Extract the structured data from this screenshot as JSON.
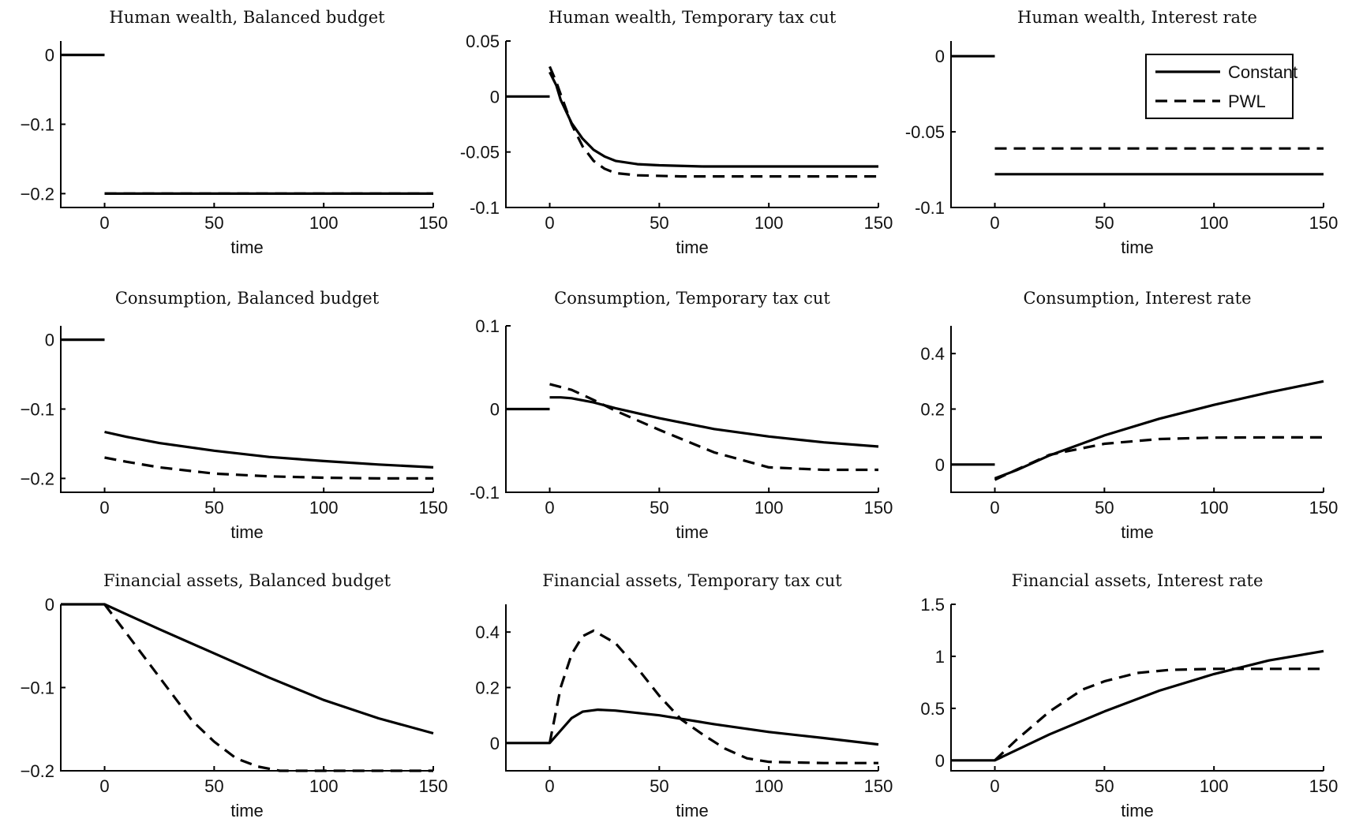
{
  "legend": {
    "placement": "top-right of the Human wealth, Interest rate panel",
    "entries": [
      {
        "label": "Constant",
        "style": "solid"
      },
      {
        "label": "PWL",
        "style": "dashed"
      }
    ]
  },
  "colors": {
    "line": "#000000",
    "background": "#ffffff"
  },
  "chart_data": [
    {
      "type": "line",
      "title": "Human wealth, Balanced budget",
      "xlabel": "time",
      "xlim": [
        -20,
        150
      ],
      "ylim": [
        -0.22,
        0.02
      ],
      "xticks": [
        0,
        50,
        100,
        150
      ],
      "yticks": [
        0,
        -0.1,
        -0.2
      ],
      "ytick_labels": [
        "0",
        "−0.1",
        "−0.2"
      ],
      "series": [
        {
          "name": "Constant",
          "style": "solid",
          "segments": [
            [
              [
                -20,
                0
              ],
              [
                0,
                0
              ]
            ],
            [
              [
                0,
                -0.2
              ],
              [
                150,
                -0.2
              ]
            ]
          ]
        },
        {
          "name": "PWL",
          "style": "dashed",
          "segments": [
            [
              [
                0,
                -0.2
              ],
              [
                150,
                -0.2
              ]
            ]
          ]
        }
      ]
    },
    {
      "type": "line",
      "title": "Human wealth, Temporary tax cut",
      "xlabel": "time",
      "xlim": [
        -20,
        150
      ],
      "ylim": [
        -0.1,
        0.05
      ],
      "xticks": [
        0,
        50,
        100,
        150
      ],
      "yticks": [
        0.05,
        0,
        -0.05,
        -0.1
      ],
      "ytick_labels": [
        "0.05",
        "0",
        "-0.05",
        "-0.1"
      ],
      "series": [
        {
          "name": "Constant",
          "style": "solid",
          "segments": [
            [
              [
                -20,
                0
              ],
              [
                0,
                0
              ]
            ],
            [
              [
                0,
                0.022
              ],
              [
                3,
                0.01
              ],
              [
                5,
                -0.003
              ],
              [
                10,
                -0.024
              ],
              [
                15,
                -0.038
              ],
              [
                20,
                -0.048
              ],
              [
                25,
                -0.054
              ],
              [
                30,
                -0.058
              ],
              [
                40,
                -0.061
              ],
              [
                50,
                -0.062
              ],
              [
                70,
                -0.063
              ],
              [
                100,
                -0.063
              ],
              [
                150,
                -0.063
              ]
            ]
          ]
        },
        {
          "name": "PWL",
          "style": "dashed",
          "segments": [
            [
              [
                0,
                0.027
              ],
              [
                3,
                0.013
              ],
              [
                5,
                0.002
              ],
              [
                10,
                -0.025
              ],
              [
                15,
                -0.045
              ],
              [
                20,
                -0.058
              ],
              [
                25,
                -0.065
              ],
              [
                30,
                -0.069
              ],
              [
                40,
                -0.071
              ],
              [
                60,
                -0.072
              ],
              [
                100,
                -0.072
              ],
              [
                150,
                -0.072
              ]
            ]
          ]
        }
      ]
    },
    {
      "type": "line",
      "title": "Human wealth, Interest rate",
      "xlabel": "time",
      "xlim": [
        -20,
        150
      ],
      "ylim": [
        -0.1,
        0.01
      ],
      "xticks": [
        0,
        50,
        100,
        150
      ],
      "yticks": [
        0,
        -0.05,
        -0.1
      ],
      "ytick_labels": [
        "0",
        "-0.05",
        "-0.1"
      ],
      "series": [
        {
          "name": "Constant",
          "style": "solid",
          "segments": [
            [
              [
                -20,
                0
              ],
              [
                0,
                0
              ]
            ],
            [
              [
                0,
                -0.078
              ],
              [
                150,
                -0.078
              ]
            ]
          ]
        },
        {
          "name": "PWL",
          "style": "dashed",
          "segments": [
            [
              [
                0,
                -0.061
              ],
              [
                150,
                -0.061
              ]
            ]
          ]
        }
      ]
    },
    {
      "type": "line",
      "title": "Consumption, Balanced budget",
      "xlabel": "time",
      "xlim": [
        -20,
        150
      ],
      "ylim": [
        -0.22,
        0.02
      ],
      "xticks": [
        0,
        50,
        100,
        150
      ],
      "yticks": [
        0,
        -0.1,
        -0.2
      ],
      "ytick_labels": [
        "0",
        "−0.1",
        "−0.2"
      ],
      "series": [
        {
          "name": "Constant",
          "style": "solid",
          "segments": [
            [
              [
                -20,
                0
              ],
              [
                0,
                0
              ]
            ],
            [
              [
                0,
                -0.133
              ],
              [
                10,
                -0.14
              ],
              [
                25,
                -0.149
              ],
              [
                50,
                -0.16
              ],
              [
                75,
                -0.169
              ],
              [
                100,
                -0.175
              ],
              [
                125,
                -0.18
              ],
              [
                150,
                -0.184
              ]
            ]
          ]
        },
        {
          "name": "PWL",
          "style": "dashed",
          "segments": [
            [
              [
                0,
                -0.17
              ],
              [
                10,
                -0.176
              ],
              [
                25,
                -0.184
              ],
              [
                50,
                -0.193
              ],
              [
                75,
                -0.197
              ],
              [
                100,
                -0.199
              ],
              [
                125,
                -0.2
              ],
              [
                150,
                -0.2
              ]
            ]
          ]
        }
      ]
    },
    {
      "type": "line",
      "title": "Consumption, Temporary tax cut",
      "xlabel": "time",
      "xlim": [
        -20,
        150
      ],
      "ylim": [
        -0.1,
        0.1
      ],
      "xticks": [
        0,
        50,
        100,
        150
      ],
      "yticks": [
        0.1,
        0,
        -0.1
      ],
      "ytick_labels": [
        "0.1",
        "0",
        "-0.1"
      ],
      "series": [
        {
          "name": "Constant",
          "style": "solid",
          "segments": [
            [
              [
                -20,
                0
              ],
              [
                0,
                0
              ]
            ],
            [
              [
                0,
                0.014
              ],
              [
                5,
                0.014
              ],
              [
                10,
                0.013
              ],
              [
                20,
                0.008
              ],
              [
                30,
                0.001
              ],
              [
                50,
                -0.011
              ],
              [
                75,
                -0.024
              ],
              [
                100,
                -0.033
              ],
              [
                125,
                -0.04
              ],
              [
                150,
                -0.045
              ]
            ]
          ]
        },
        {
          "name": "PWL",
          "style": "dashed",
          "segments": [
            [
              [
                0,
                0.03
              ],
              [
                10,
                0.023
              ],
              [
                20,
                0.011
              ],
              [
                30,
                -0.002
              ],
              [
                50,
                -0.025
              ],
              [
                75,
                -0.052
              ],
              [
                100,
                -0.07
              ],
              [
                125,
                -0.073
              ],
              [
                150,
                -0.073
              ]
            ]
          ]
        }
      ]
    },
    {
      "type": "line",
      "title": "Consumption, Interest rate",
      "xlabel": "time",
      "xlim": [
        -20,
        150
      ],
      "ylim": [
        -0.1,
        0.5
      ],
      "xticks": [
        0,
        50,
        100,
        150
      ],
      "yticks": [
        0.4,
        0.2,
        0
      ],
      "ytick_labels": [
        "0.4",
        "0.2",
        "0"
      ],
      "series": [
        {
          "name": "Constant",
          "style": "solid",
          "segments": [
            [
              [
                -20,
                0
              ],
              [
                0,
                0
              ]
            ],
            [
              [
                0,
                -0.05
              ],
              [
                10,
                -0.02
              ],
              [
                25,
                0.033
              ],
              [
                50,
                0.105
              ],
              [
                75,
                0.165
              ],
              [
                100,
                0.215
              ],
              [
                125,
                0.26
              ],
              [
                150,
                0.3
              ]
            ]
          ]
        },
        {
          "name": "PWL",
          "style": "dashed",
          "segments": [
            [
              [
                0,
                -0.055
              ],
              [
                10,
                -0.018
              ],
              [
                25,
                0.035
              ],
              [
                50,
                0.075
              ],
              [
                75,
                0.092
              ],
              [
                100,
                0.097
              ],
              [
                125,
                0.098
              ],
              [
                150,
                0.098
              ]
            ]
          ]
        }
      ]
    },
    {
      "type": "line",
      "title": "Financial assets, Balanced budget",
      "xlabel": "time",
      "xlim": [
        -20,
        150
      ],
      "ylim": [
        -0.2,
        0.0
      ],
      "xticks": [
        0,
        50,
        100,
        150
      ],
      "yticks": [
        0,
        -0.1,
        -0.2
      ],
      "ytick_labels": [
        "0",
        "−0.1",
        "−0.2"
      ],
      "series": [
        {
          "name": "Constant",
          "style": "solid",
          "segments": [
            [
              [
                -20,
                0
              ],
              [
                0,
                0
              ],
              [
                10,
                -0.012
              ],
              [
                25,
                -0.03
              ],
              [
                50,
                -0.059
              ],
              [
                75,
                -0.088
              ],
              [
                100,
                -0.115
              ],
              [
                125,
                -0.137
              ],
              [
                150,
                -0.155
              ]
            ]
          ]
        },
        {
          "name": "PWL",
          "style": "dashed",
          "segments": [
            [
              [
                0,
                0
              ],
              [
                10,
                -0.035
              ],
              [
                20,
                -0.07
              ],
              [
                30,
                -0.105
              ],
              [
                40,
                -0.14
              ],
              [
                50,
                -0.165
              ],
              [
                60,
                -0.185
              ],
              [
                70,
                -0.195
              ],
              [
                80,
                -0.2
              ],
              [
                150,
                -0.2
              ]
            ]
          ]
        }
      ]
    },
    {
      "type": "line",
      "title": "Financial assets, Temporary tax cut",
      "xlabel": "time",
      "xlim": [
        -20,
        150
      ],
      "ylim": [
        -0.1,
        0.5
      ],
      "xticks": [
        0,
        50,
        100,
        150
      ],
      "yticks": [
        0.4,
        0.2,
        0
      ],
      "ytick_labels": [
        "0.4",
        "0.2",
        "0"
      ],
      "series": [
        {
          "name": "Constant",
          "style": "solid",
          "segments": [
            [
              [
                -20,
                0
              ],
              [
                0,
                0
              ],
              [
                5,
                0.045
              ],
              [
                10,
                0.09
              ],
              [
                15,
                0.113
              ],
              [
                22,
                0.12
              ],
              [
                30,
                0.117
              ],
              [
                50,
                0.1
              ],
              [
                75,
                0.068
              ],
              [
                100,
                0.04
              ],
              [
                125,
                0.018
              ],
              [
                150,
                -0.005
              ]
            ]
          ]
        },
        {
          "name": "PWL",
          "style": "dashed",
          "segments": [
            [
              [
                0,
                0
              ],
              [
                5,
                0.2
              ],
              [
                10,
                0.32
              ],
              [
                15,
                0.385
              ],
              [
                20,
                0.405
              ],
              [
                30,
                0.36
              ],
              [
                40,
                0.27
              ],
              [
                50,
                0.17
              ],
              [
                60,
                0.085
              ],
              [
                70,
                0.03
              ],
              [
                80,
                -0.02
              ],
              [
                90,
                -0.055
              ],
              [
                100,
                -0.068
              ],
              [
                125,
                -0.072
              ],
              [
                150,
                -0.072
              ]
            ]
          ]
        }
      ]
    },
    {
      "type": "line",
      "title": "Financial assets, Interest rate",
      "xlabel": "time",
      "xlim": [
        -20,
        150
      ],
      "ylim": [
        -0.1,
        1.5
      ],
      "xticks": [
        0,
        50,
        100,
        150
      ],
      "yticks": [
        1.5,
        1,
        0.5,
        0
      ],
      "ytick_labels": [
        "1.5",
        "1",
        "0.5",
        "0"
      ],
      "series": [
        {
          "name": "Constant",
          "style": "solid",
          "segments": [
            [
              [
                -20,
                0
              ],
              [
                0,
                0
              ],
              [
                10,
                0.1
              ],
              [
                25,
                0.25
              ],
              [
                50,
                0.47
              ],
              [
                75,
                0.67
              ],
              [
                100,
                0.83
              ],
              [
                125,
                0.96
              ],
              [
                150,
                1.05
              ]
            ]
          ]
        },
        {
          "name": "PWL",
          "style": "dashed",
          "segments": [
            [
              [
                0,
                0
              ],
              [
                10,
                0.2
              ],
              [
                25,
                0.47
              ],
              [
                40,
                0.68
              ],
              [
                50,
                0.76
              ],
              [
                65,
                0.84
              ],
              [
                80,
                0.87
              ],
              [
                100,
                0.88
              ],
              [
                150,
                0.88
              ]
            ]
          ]
        }
      ]
    }
  ]
}
